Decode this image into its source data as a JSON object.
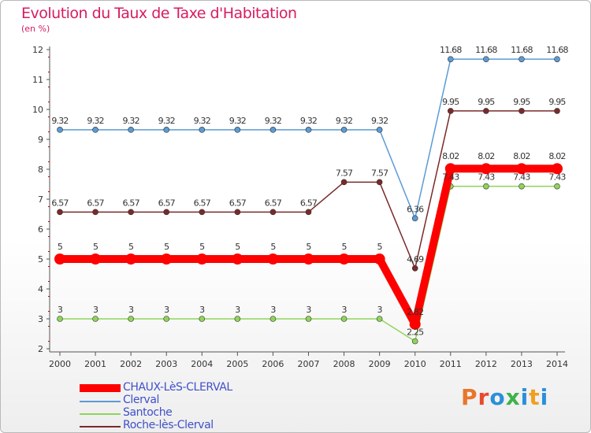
{
  "chart_data": {
    "type": "line",
    "title": "Evolution du Taux de Taxe d'Habitation",
    "subtitle": "(en %)",
    "xlabel": "",
    "ylabel": "",
    "x": [
      "2000",
      "2001",
      "2002",
      "2003",
      "2004",
      "2005",
      "2006",
      "2007",
      "2008",
      "2009",
      "2010",
      "2011",
      "2012",
      "2013",
      "2014"
    ],
    "ylim": [
      2,
      12
    ],
    "yticks": [
      "2",
      "3",
      "4",
      "5",
      "6",
      "7",
      "8",
      "9",
      "10",
      "11",
      "12"
    ],
    "grid": false,
    "legend": "bottom-left",
    "series": [
      {
        "name": "CHAUX-LèS-CLERVAL",
        "color": "#ff0000",
        "emphasis": true,
        "values": [
          5,
          5,
          5,
          5,
          5,
          5,
          5,
          5,
          5,
          5,
          2.82,
          8.02,
          8.02,
          8.02,
          8.02
        ],
        "labels": [
          "5",
          "5",
          "5",
          "5",
          "5",
          "5",
          "5",
          "5",
          "5",
          "5",
          "2.82",
          "8.02",
          "8.02",
          "8.02",
          "8.02"
        ]
      },
      {
        "name": "Clerval",
        "color": "#5b9bd5",
        "values": [
          9.32,
          9.32,
          9.32,
          9.32,
          9.32,
          9.32,
          9.32,
          9.32,
          9.32,
          9.32,
          6.36,
          11.68,
          11.68,
          11.68,
          11.68
        ],
        "labels": [
          "9.32",
          "9.32",
          "9.32",
          "9.32",
          "9.32",
          "9.32",
          "9.32",
          "9.32",
          "9.32",
          "9.32",
          "6.36",
          "11.68",
          "11.68",
          "11.68",
          "11.68"
        ]
      },
      {
        "name": "Santoche",
        "color": "#8fd45a",
        "values": [
          3,
          3,
          3,
          3,
          3,
          3,
          3,
          3,
          3,
          3,
          2.25,
          7.43,
          7.43,
          7.43,
          7.43
        ],
        "labels": [
          "3",
          "3",
          "3",
          "3",
          "3",
          "3",
          "3",
          "3",
          "3",
          "3",
          "2.25",
          "7.43",
          "7.43",
          "7.43",
          "7.43"
        ]
      },
      {
        "name": "Roche-lès-Clerval",
        "color": "#7a2a2a",
        "values": [
          6.57,
          6.57,
          6.57,
          6.57,
          6.57,
          6.57,
          6.57,
          6.57,
          7.57,
          7.57,
          4.69,
          9.95,
          9.95,
          9.95,
          9.95
        ],
        "labels": [
          "6.57",
          "6.57",
          "6.57",
          "6.57",
          "6.57",
          "6.57",
          "6.57",
          "6.57",
          "7.57",
          "7.57",
          "4.69",
          "9.95",
          "9.95",
          "9.95",
          "9.95"
        ]
      }
    ]
  },
  "logo": {
    "text": "Proxiti",
    "colors": [
      "#e8762b",
      "#e84a2b",
      "#2b8fd8",
      "#3fb24a",
      "#2b8fd8",
      "#f0a020",
      "#2b8fd8"
    ]
  }
}
